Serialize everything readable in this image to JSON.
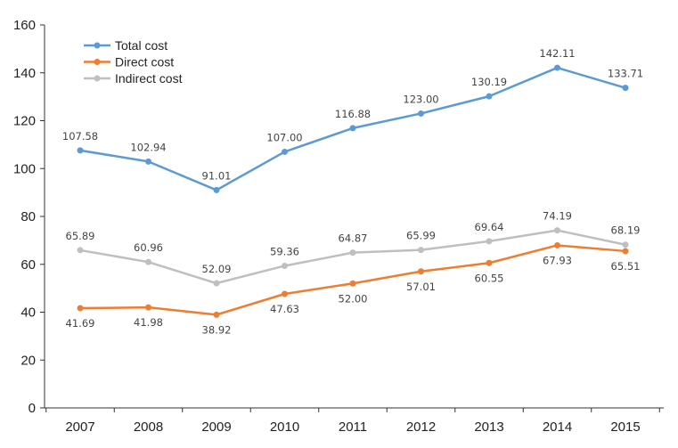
{
  "chart_data": {
    "type": "line",
    "title": "",
    "xlabel": "",
    "ylabel": "",
    "ylim": [
      0,
      160
    ],
    "yticks": [
      0,
      20,
      40,
      60,
      80,
      100,
      120,
      140,
      160
    ],
    "categories": [
      "2007",
      "2008",
      "2009",
      "2010",
      "2011",
      "2012",
      "2013",
      "2014",
      "2015"
    ],
    "legend_position": "top-left",
    "grid": false,
    "series": [
      {
        "name": "Total cost",
        "color": "#5b9bd5",
        "values": [
          107.58,
          102.94,
          91.01,
          107.0,
          116.88,
          123.0,
          130.19,
          142.11,
          133.71
        ],
        "labels": [
          "107.58",
          "102.94",
          "91.01",
          "107.00",
          "116.88",
          "123.00",
          "130.19",
          "142.11",
          "133.71"
        ],
        "label_position": "above"
      },
      {
        "name": "Direct cost",
        "color": "#ed7d31",
        "values": [
          41.69,
          41.98,
          38.92,
          47.63,
          52.0,
          57.01,
          60.55,
          67.93,
          65.51
        ],
        "labels": [
          "41.69",
          "41.98",
          "38.92",
          "47.63",
          "52.00",
          "57.01",
          "60.55",
          "67.93",
          "65.51"
        ],
        "label_position": "below"
      },
      {
        "name": "Indirect cost",
        "color": "#bfbfbf",
        "values": [
          65.89,
          60.96,
          52.09,
          59.36,
          64.87,
          65.99,
          69.64,
          74.19,
          68.19
        ],
        "labels": [
          "65.89",
          "60.96",
          "52.09",
          "59.36",
          "64.87",
          "65.99",
          "69.64",
          "74.19",
          "68.19"
        ],
        "label_position": "above"
      }
    ]
  }
}
